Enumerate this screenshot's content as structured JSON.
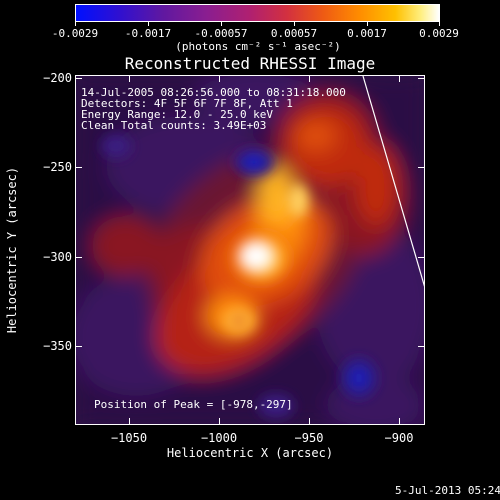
{
  "colorbar": {
    "ticks": [
      "-0.0029",
      "-0.0017",
      "-0.00057",
      "0.00057",
      "0.0017",
      "0.0029"
    ],
    "units": "(photons cm⁻² s⁻¹ asec⁻²)",
    "colors": [
      "#0010ff",
      "#6018a0",
      "#b02070",
      "#ee5a14",
      "#ffc000",
      "#ffffff"
    ]
  },
  "image": {
    "title": "Reconstructed RHESSI Image",
    "info_lines": [
      "14-Jul-2005 08:26:56.000 to 08:31:18.000",
      "Detectors: 4F 5F 6F 7F 8F, Att 1",
      "Energy Range: 12.0 - 25.0 keV",
      "Clean    Total counts: 3.49E+03"
    ],
    "peak_text": "Position of Peak = [-978,-297]",
    "peak_position": [
      -978,
      -297
    ],
    "x_range": [
      -1080,
      -885
    ],
    "y_range": [
      -200,
      -395
    ]
  },
  "axes": {
    "xlabel": "Heliocentric X (arcsec)",
    "ylabel": "Heliocentric Y (arcsec)",
    "xticks": [
      {
        "label": "−1050",
        "value": -1050
      },
      {
        "label": "−1000",
        "value": -1000
      },
      {
        "label": "−950",
        "value": -950
      },
      {
        "label": "−900",
        "value": -900
      }
    ],
    "yticks": [
      {
        "label": "−200",
        "value": -200
      },
      {
        "label": "−250",
        "value": -250
      },
      {
        "label": "−300",
        "value": -300
      },
      {
        "label": "−350",
        "value": -350
      }
    ]
  },
  "footer": {
    "date": "5-Jul-2013 05:24"
  }
}
